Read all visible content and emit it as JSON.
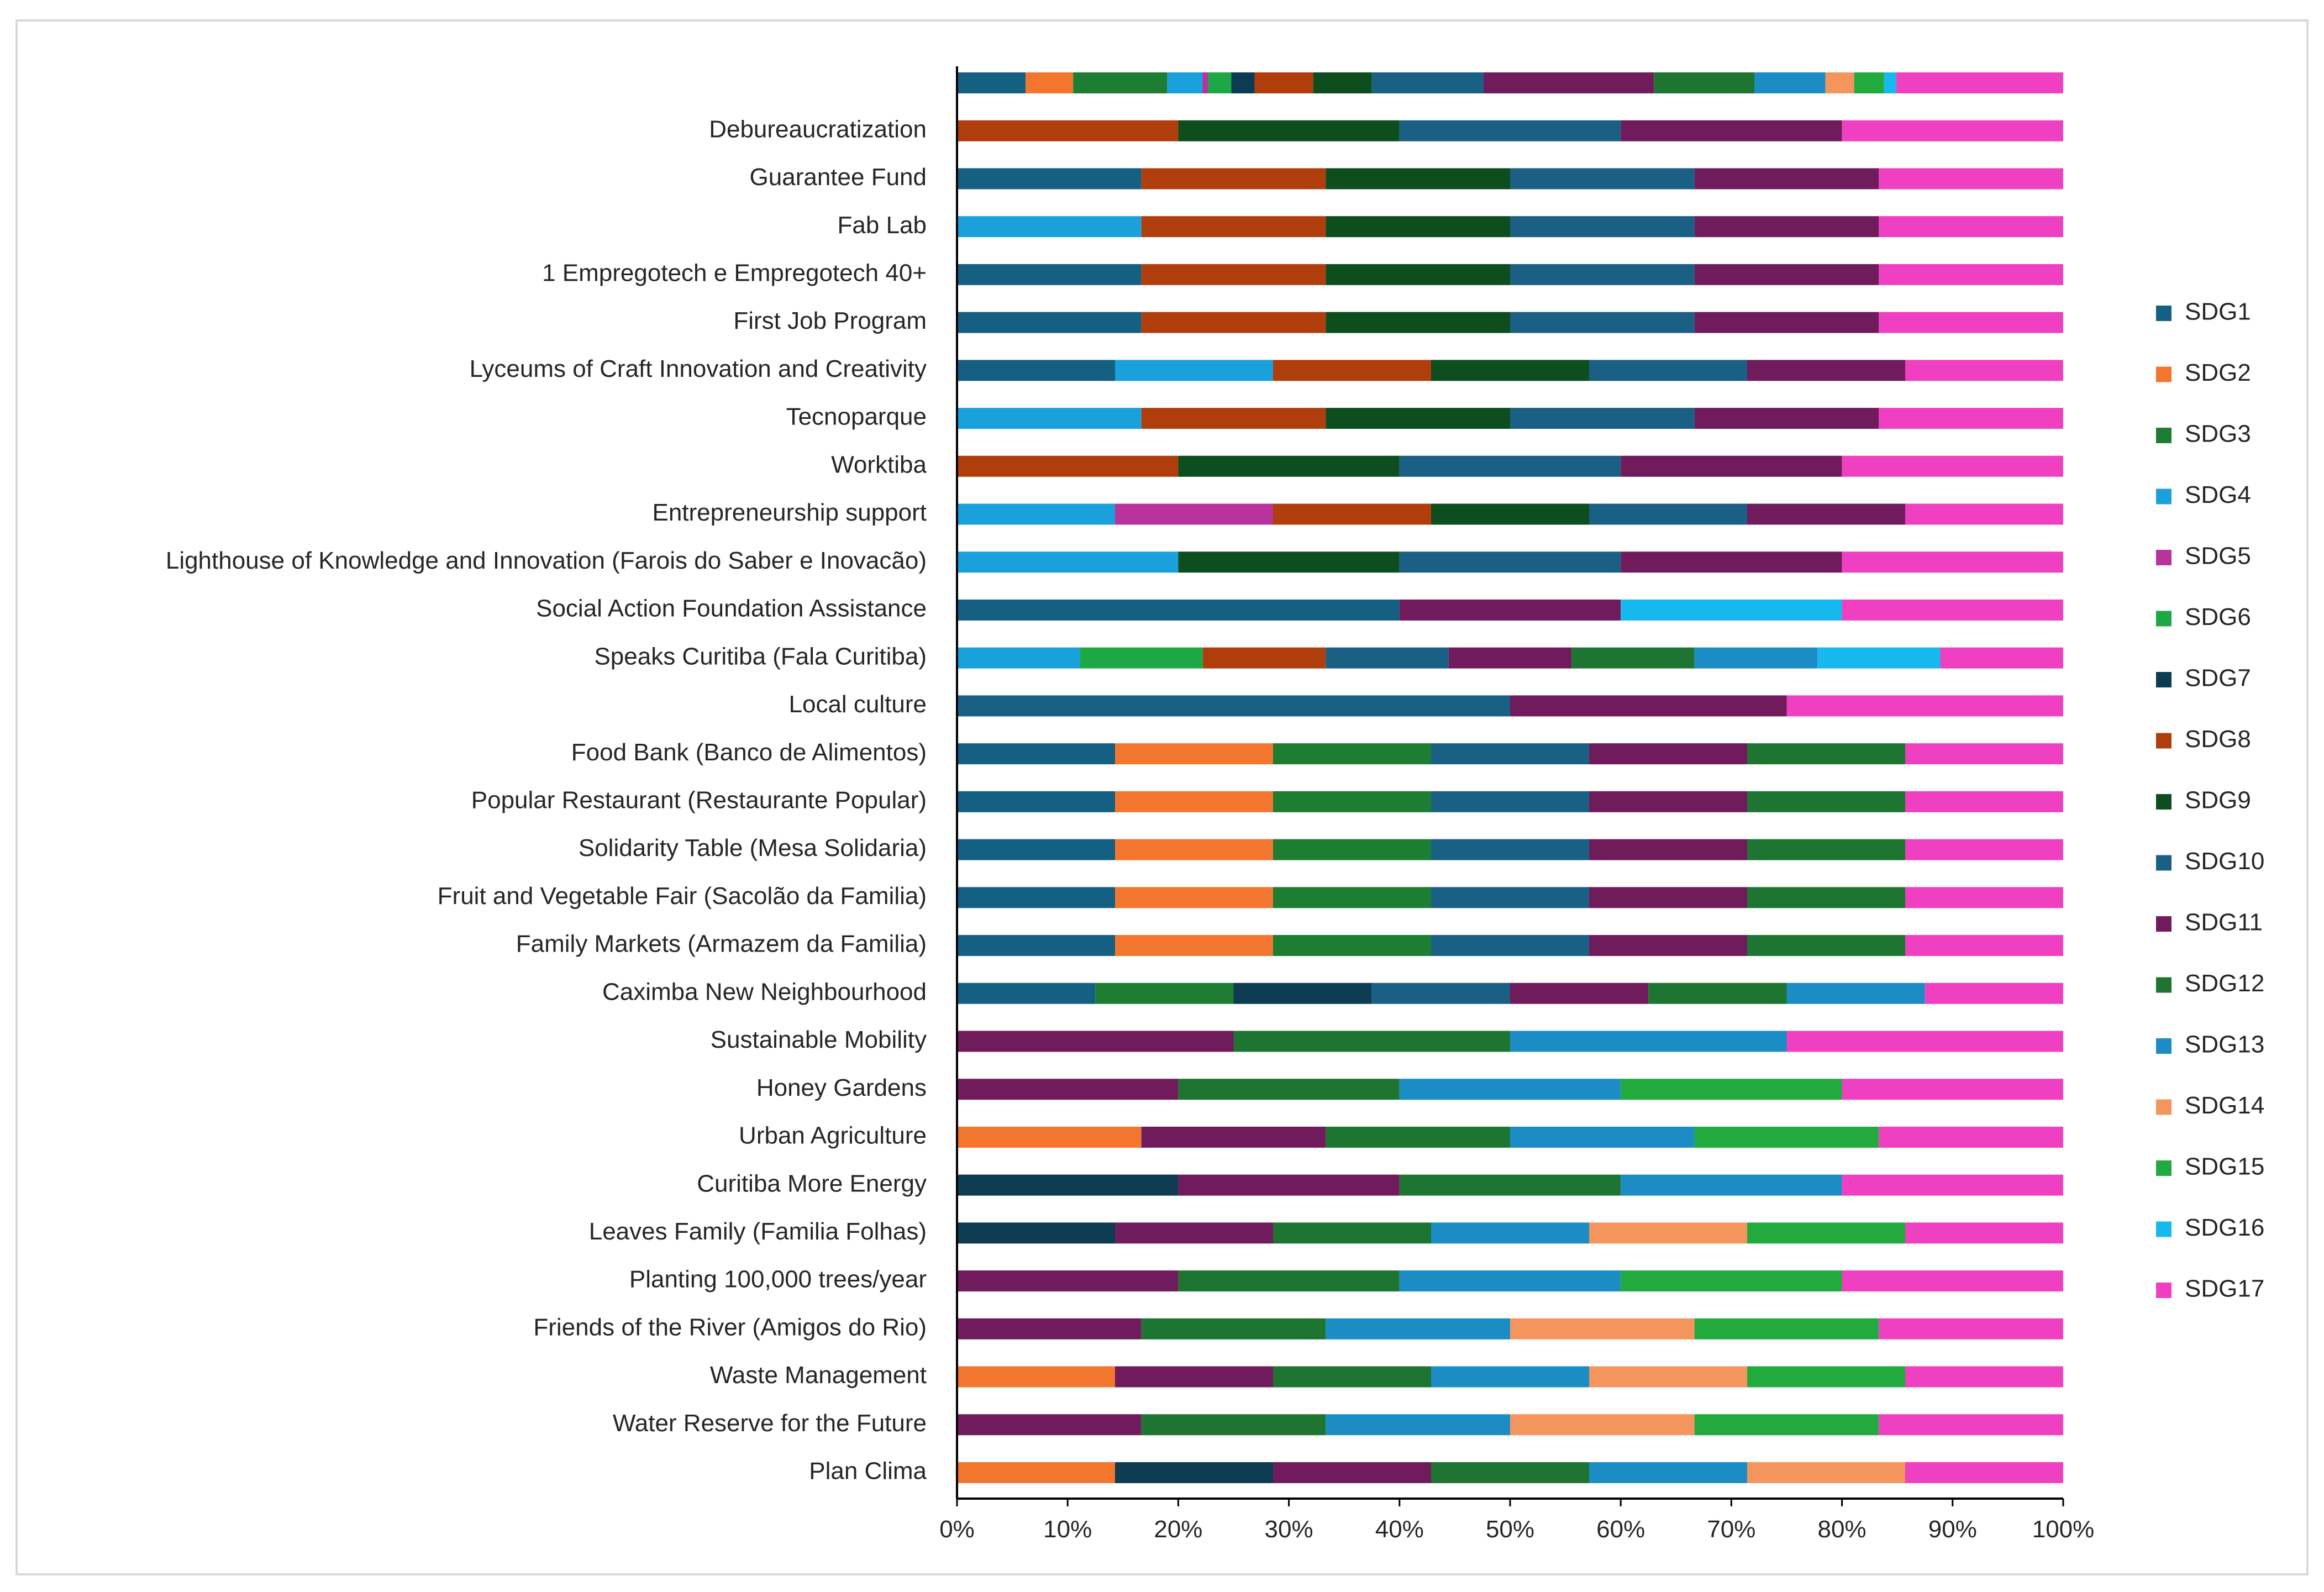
{
  "chart_data": {
    "type": "bar",
    "orientation": "horizontal",
    "stacked": "percent",
    "title": "",
    "xlabel": "",
    "ylabel": "",
    "xlim": [
      0,
      100
    ],
    "x_ticks": [
      "0%",
      "10%",
      "20%",
      "30%",
      "40%",
      "50%",
      "60%",
      "70%",
      "80%",
      "90%",
      "100%"
    ],
    "grid": false,
    "legend_position": "right",
    "categories": [
      "",
      "Debureaucratization",
      "Guarantee Fund",
      "Fab Lab",
      "1 Empregotech e Empregotech 40+",
      "First Job Program",
      "Lyceums of Craft Innovation and Creativity",
      "Tecnoparque",
      "Worktiba",
      "Entrepreneurship support",
      "Lighthouse of Knowledge and Innovation (Farois do Saber e Inovacão)",
      "Social Action Foundation Assistance",
      "Speaks Curitiba (Fala Curitiba)",
      "Local culture",
      "Food Bank (Banco de Alimentos)",
      "Popular Restaurant (Restaurante Popular)",
      "Solidarity Table (Mesa Solidaria)",
      "Fruit and Vegetable Fair (Sacolão da Familia)",
      "Family Markets (Armazem da Familia)",
      "Caximba New Neighbourhood",
      "Sustainable Mobility",
      "Honey Gardens",
      "Urban Agriculture",
      "Curitiba More Energy",
      "Leaves Family (Familia Folhas)",
      "Planting 100,000 trees/year",
      "Friends of the River (Amigos do Rio)",
      "Waste Management",
      "Water Reserve for the Future",
      "Plan Clima"
    ],
    "series": [
      {
        "name": "SDG1",
        "color": "#156082",
        "values": [
          6.2,
          0,
          16.7,
          0,
          16.7,
          16.7,
          14.3,
          0,
          0,
          0,
          0,
          40,
          0,
          0,
          14.3,
          14.3,
          14.3,
          14.3,
          14.3,
          12.5,
          0,
          0,
          0,
          0,
          0,
          0,
          0,
          0,
          0,
          0
        ]
      },
      {
        "name": "SDG2",
        "color": "#F2762E",
        "values": [
          4.3,
          0,
          0,
          0,
          0,
          0,
          0,
          0,
          0,
          0,
          0,
          0,
          0,
          0,
          14.3,
          14.3,
          14.3,
          14.3,
          14.3,
          0,
          0,
          0,
          14.3,
          0,
          0,
          0,
          0,
          12.5,
          0,
          12.5
        ]
      },
      {
        "name": "SDG3",
        "color": "#1D7D32",
        "values": [
          8.5,
          0,
          0,
          0,
          0,
          0,
          0,
          0,
          0,
          0,
          0,
          0,
          0,
          0,
          14.3,
          14.3,
          14.3,
          14.3,
          14.3,
          12.5,
          0,
          0,
          0,
          0,
          0,
          0,
          0,
          0,
          0,
          0
        ]
      },
      {
        "name": "SDG4",
        "color": "#1AA0DA",
        "values": [
          3.2,
          0,
          0,
          16.7,
          0,
          0,
          14.3,
          16.7,
          0,
          14.3,
          20,
          0,
          11.1,
          0,
          0,
          0,
          0,
          0,
          0,
          0,
          0,
          0,
          0,
          0,
          0,
          0,
          0,
          0,
          0,
          0
        ]
      },
      {
        "name": "SDG5",
        "color": "#B8339B",
        "values": [
          0.5,
          0,
          0,
          0,
          0,
          0,
          0,
          0,
          0,
          14.3,
          0,
          0,
          0,
          0,
          0,
          0,
          0,
          0,
          0,
          0,
          0,
          0,
          0,
          0,
          0,
          0,
          0,
          0,
          0,
          0
        ]
      },
      {
        "name": "SDG6",
        "color": "#1EA845",
        "values": [
          2.1,
          0,
          0,
          0,
          0,
          0,
          0,
          0,
          0,
          0,
          0,
          0,
          11.1,
          0,
          0,
          0,
          0,
          0,
          0,
          0,
          0,
          0,
          0,
          0,
          0,
          0,
          0,
          0,
          0,
          0
        ]
      },
      {
        "name": "SDG7",
        "color": "#0C3B52",
        "values": [
          2.1,
          0,
          0,
          0,
          0,
          0,
          0,
          0,
          0,
          0,
          0,
          0,
          0,
          0,
          0,
          0,
          0,
          0,
          0,
          12.5,
          0,
          0,
          0,
          16.7,
          11.1,
          0,
          0,
          0,
          0,
          12.5
        ]
      },
      {
        "name": "SDG8",
        "color": "#B03E0D",
        "values": [
          5.3,
          20,
          16.7,
          16.7,
          16.7,
          16.7,
          14.3,
          16.7,
          20,
          14.3,
          0,
          0,
          11.1,
          0,
          0,
          0,
          0,
          0,
          0,
          0,
          0,
          0,
          0,
          0,
          0,
          0,
          0,
          0,
          0,
          0
        ]
      },
      {
        "name": "SDG9",
        "color": "#0E4D1E",
        "values": [
          5.3,
          20,
          16.7,
          16.7,
          16.7,
          16.7,
          14.3,
          16.7,
          20,
          14.3,
          20,
          0,
          0,
          0,
          0,
          0,
          0,
          0,
          0,
          0,
          0,
          0,
          0,
          0,
          0,
          0,
          0,
          0,
          0,
          0
        ]
      },
      {
        "name": "SDG10",
        "color": "#1A6084",
        "values": [
          10.1,
          20,
          16.7,
          16.7,
          16.7,
          16.7,
          14.3,
          16.7,
          20,
          14.3,
          20,
          0,
          11.1,
          50,
          14.3,
          14.3,
          14.3,
          14.3,
          14.3,
          12.5,
          0,
          0,
          0,
          0,
          0,
          0,
          0,
          0,
          0,
          0
        ]
      },
      {
        "name": "SDG11",
        "color": "#701B5C",
        "values": [
          15.4,
          20,
          16.7,
          16.7,
          16.7,
          16.7,
          14.3,
          16.7,
          20,
          14.3,
          20,
          20,
          11.1,
          25,
          14.3,
          14.3,
          14.3,
          14.3,
          14.3,
          12.5,
          20,
          16.7,
          14.3,
          16.7,
          11.1,
          16.7,
          14.3,
          12.5,
          14.3,
          12.5
        ]
      },
      {
        "name": "SDG12",
        "color": "#1E7532",
        "values": [
          9.1,
          0,
          0,
          0,
          0,
          0,
          0,
          0,
          0,
          0,
          0,
          0,
          11.1,
          0,
          14.3,
          14.3,
          14.3,
          14.3,
          14.3,
          12.5,
          20,
          16.7,
          14.3,
          16.7,
          11.1,
          16.7,
          14.3,
          12.5,
          14.3,
          12.5
        ]
      },
      {
        "name": "SDG13",
        "color": "#1B8DC4",
        "values": [
          6.4,
          0,
          0,
          0,
          0,
          0,
          0,
          0,
          0,
          0,
          0,
          0,
          11.1,
          0,
          0,
          0,
          0,
          0,
          0,
          12.5,
          20,
          16.7,
          14.3,
          16.7,
          11.1,
          16.7,
          14.3,
          12.5,
          14.3,
          12.5
        ]
      },
      {
        "name": "SDG14",
        "color": "#F5955E",
        "values": [
          2.6,
          0,
          0,
          0,
          0,
          0,
          0,
          0,
          0,
          0,
          0,
          0,
          0,
          0,
          0,
          0,
          0,
          0,
          0,
          0,
          0,
          0,
          0,
          0,
          11.1,
          0,
          14.3,
          12.5,
          14.3,
          12.5
        ]
      },
      {
        "name": "SDG15",
        "color": "#22AA3E",
        "values": [
          2.7,
          0,
          0,
          0,
          0,
          0,
          0,
          0,
          0,
          0,
          0,
          0,
          0,
          0,
          0,
          0,
          0,
          0,
          0,
          0,
          0,
          16.7,
          14.3,
          0,
          11.1,
          16.7,
          14.3,
          12.5,
          14.3,
          0
        ]
      },
      {
        "name": "SDG16",
        "color": "#16B8EE",
        "values": [
          1.1,
          0,
          0,
          0,
          0,
          0,
          0,
          0,
          0,
          0,
          0,
          20,
          11.1,
          0,
          0,
          0,
          0,
          0,
          0,
          0,
          0,
          0,
          0,
          0,
          0,
          0,
          0,
          0,
          0,
          0
        ]
      },
      {
        "name": "SDG17",
        "color": "#EE40C0",
        "values": [
          15.1,
          20,
          16.7,
          16.7,
          16.7,
          16.7,
          14.3,
          16.7,
          20,
          14.3,
          20,
          20,
          11.1,
          25,
          14.3,
          14.3,
          14.3,
          14.3,
          14.3,
          12.5,
          20,
          16.7,
          14.3,
          16.7,
          11.1,
          16.7,
          14.3,
          12.5,
          14.3,
          12.5
        ]
      }
    ]
  }
}
